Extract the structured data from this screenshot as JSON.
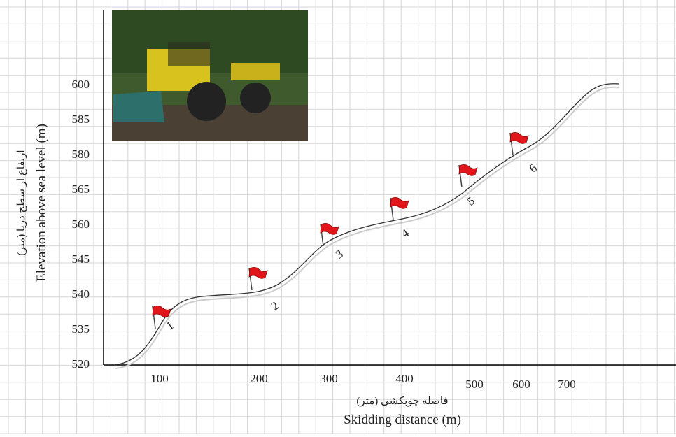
{
  "y_axis": {
    "title": "Elevation above sea level (m)",
    "title_fa": "ارتفاع از سطح دریا (متر)",
    "labels": [
      "600",
      "585",
      "580",
      "565",
      "560",
      "545",
      "540",
      "535",
      "520"
    ]
  },
  "x_axis": {
    "title": "Skidding distance (m)",
    "title_fa": "فاصله چوبکشی (متر)",
    "labels": [
      "100",
      "200",
      "300",
      "400",
      "500",
      "600",
      "700"
    ]
  },
  "flags": [
    "1",
    "2",
    "3",
    "4",
    "5",
    "6"
  ]
}
